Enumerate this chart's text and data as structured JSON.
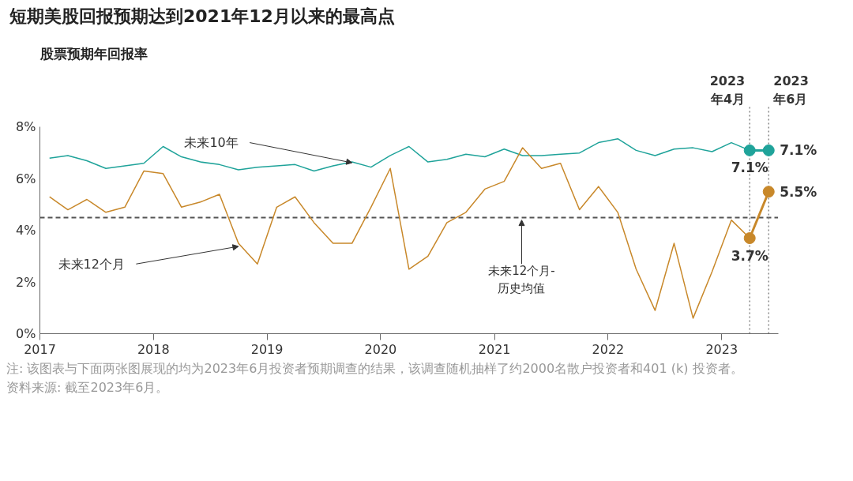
{
  "chart_data": {
    "type": "line",
    "title": "短期美股回报预期达到2021年12月以来的最高点",
    "subtitle": "股票预期年回报率",
    "x": [
      "2017-02",
      "2017-04",
      "2017-06",
      "2017-08",
      "2017-10",
      "2017-12",
      "2018-02",
      "2018-04",
      "2018-06",
      "2018-08",
      "2018-10",
      "2018-12",
      "2019-02",
      "2019-04",
      "2019-06",
      "2019-08",
      "2019-10",
      "2019-12",
      "2020-02",
      "2020-04",
      "2020-06",
      "2020-08",
      "2020-10",
      "2020-12",
      "2021-02",
      "2021-04",
      "2021-06",
      "2021-08",
      "2021-10",
      "2021-12",
      "2022-02",
      "2022-04",
      "2022-06",
      "2022-08",
      "2022-10",
      "2022-12",
      "2023-02",
      "2023-04"
    ],
    "series": [
      {
        "color": "#1fa39a",
        "values": [
          6.8,
          6.9,
          6.7,
          6.4,
          6.5,
          6.6,
          7.25,
          6.85,
          6.65,
          6.55,
          6.35,
          6.45,
          6.5,
          6.55,
          6.3,
          6.5,
          6.65,
          6.45,
          6.9,
          7.25,
          6.65,
          6.75,
          6.95,
          6.85,
          7.15,
          6.9,
          6.9,
          6.95,
          7.0,
          7.4,
          7.55,
          7.1,
          6.9,
          7.15,
          7.2,
          7.05,
          7.4,
          7.1
        ]
      },
      {
        "color": "#c8882a",
        "values": [
          5.3,
          4.8,
          5.2,
          4.7,
          4.9,
          6.3,
          6.2,
          4.9,
          5.1,
          5.4,
          3.5,
          2.7,
          4.9,
          5.3,
          4.3,
          3.5,
          3.5,
          4.9,
          6.4,
          2.5,
          3.0,
          4.3,
          4.7,
          5.6,
          5.9,
          7.2,
          6.4,
          6.6,
          4.8,
          5.7,
          4.7,
          2.5,
          0.9,
          3.5,
          0.6,
          2.4,
          4.4,
          3.7
        ]
      },
      {
        "color": "#1fa39a",
        "marker": "circle",
        "x": [
          "2023-04",
          "2023-06"
        ],
        "values": [
          7.1,
          7.1
        ],
        "value_labels": [
          "7.1%",
          "7.1%"
        ]
      },
      {
        "color": "#c8882a",
        "marker": "circle",
        "x": [
          "2023-04",
          "2023-06"
        ],
        "values": [
          3.7,
          5.5
        ],
        "value_labels": [
          "3.7%",
          "5.5%"
        ]
      }
    ],
    "xlim": [
      "2017-01",
      "2023-07"
    ],
    "xticks": [
      "2017",
      "2018",
      "2019",
      "2020",
      "2021",
      "2022",
      "2023"
    ],
    "ylim": [
      0,
      8
    ],
    "yticks": [
      {
        "value": 0,
        "label": "0%"
      },
      {
        "value": 2,
        "label": "2%"
      },
      {
        "value": 4,
        "label": "4%"
      },
      {
        "value": 6,
        "label": "6%"
      },
      {
        "value": 8,
        "label": "8%"
      }
    ],
    "ref_lines": [
      {
        "axis": "y",
        "value": 4.5,
        "label": "未来12个月-\n历史均值",
        "color": "#555555",
        "line_style": "dashed"
      },
      {
        "axis": "x",
        "value": "2023-04",
        "label": "2023\n年4月",
        "color": "#888888",
        "line_style": "dotted"
      },
      {
        "axis": "x",
        "value": "2023-06",
        "label": "2023\n年6月",
        "color": "#888888",
        "line_style": "dotted"
      }
    ],
    "annotations": [
      {
        "text": "未来10年",
        "x": "2019-10",
        "y": 6.5
      },
      {
        "text": "未来12个月",
        "x": "2018-10",
        "y": 3.5
      },
      "注: 该图表与下面两张图展现的均为2023年6月投资者预期调查的结果，该调查随机抽样了约2000名散户投资者和401 (k) 投资者。",
      "资料来源: 截至2023年6月。"
    ]
  }
}
